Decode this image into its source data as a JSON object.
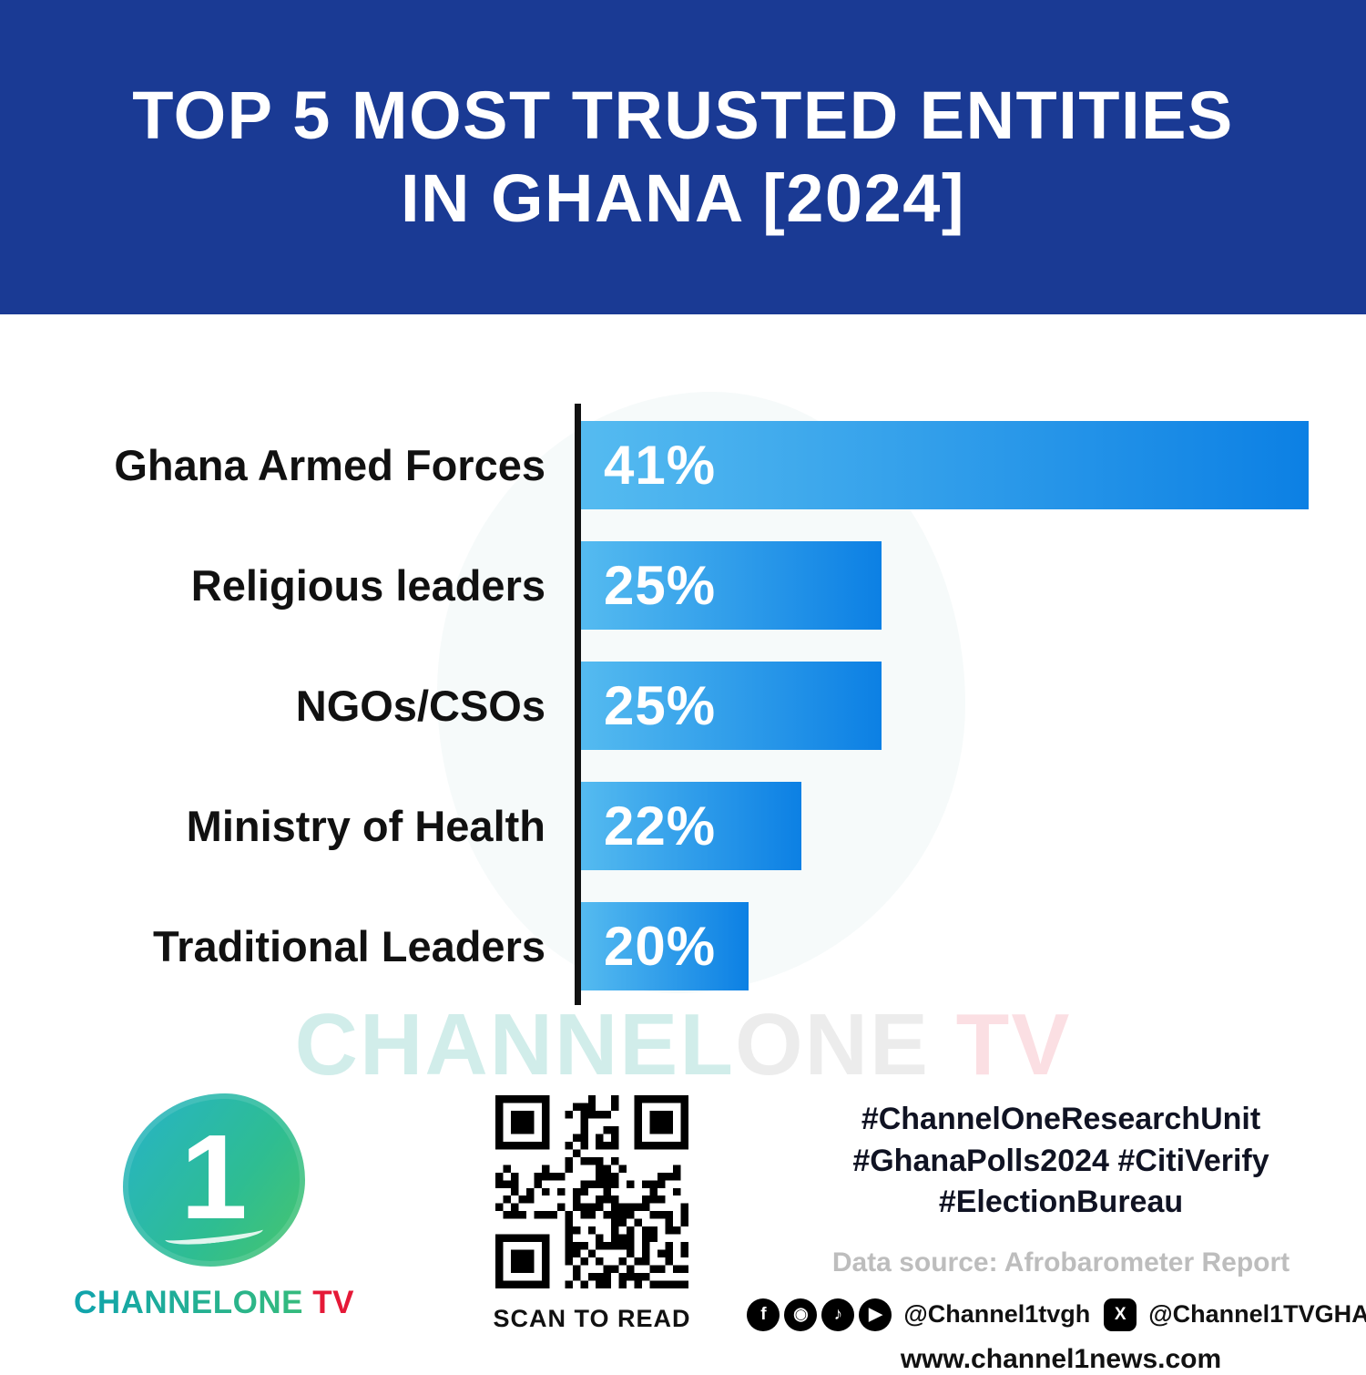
{
  "header": {
    "title_line1": "TOP 5 MOST TRUSTED ENTITIES",
    "title_line2": "IN GHANA [2024]"
  },
  "chart_data": {
    "type": "bar",
    "orientation": "horizontal",
    "title": "Top 5 Most Trusted Entities in Ghana [2024]",
    "categories": [
      "Ghana Armed Forces",
      "Religious leaders",
      "NGOs/CSOs",
      "Ministry of Health",
      "Traditional Leaders"
    ],
    "values": [
      41,
      25,
      25,
      22,
      20
    ],
    "value_labels": [
      "41%",
      "25%",
      "25%",
      "22%",
      "20%"
    ],
    "value_suffix": "%",
    "xlim": [
      0,
      44
    ],
    "grid": false,
    "legend": "none",
    "display_width_pct": [
      92.7,
      38.4,
      38.4,
      28.2,
      21.4
    ],
    "bar_color_start": "#55bbf0",
    "bar_color_end": "#0c80e4",
    "axis_color": "#111111"
  },
  "watermark": {
    "part1": "CHANNEL",
    "part2": "ONE",
    "part3": " TV"
  },
  "footer": {
    "logo": {
      "numeral": "1",
      "brand_main": "CHANNELONE",
      "brand_tv": " TV"
    },
    "qr_caption": "SCAN TO READ",
    "hashtags": {
      "line1": "#ChannelOneResearchUnit",
      "line2": "#GhanaPolls2024 #CitiVerify",
      "line3": "#ElectionBureau"
    },
    "data_source": "Data source: Afrobarometer Report",
    "social": {
      "handle_1": "@Channel1tvgh",
      "handle_2": "@Channel1TVGHA",
      "icons": {
        "facebook": "f",
        "instagram": "◉",
        "tiktok": "♪",
        "youtube": "▶",
        "x": "X"
      }
    },
    "website": "www.channel1news.com"
  },
  "colors": {
    "header_bg": "#1a3a94",
    "bar_gradient_start": "#55bbf0",
    "bar_gradient_end": "#0c80e4",
    "brand_teal": "#0fa3ad",
    "brand_green": "#35bb7d",
    "brand_red": "#e51937",
    "hashtag_text": "#101323",
    "data_source_text": "#bdbdbd"
  }
}
